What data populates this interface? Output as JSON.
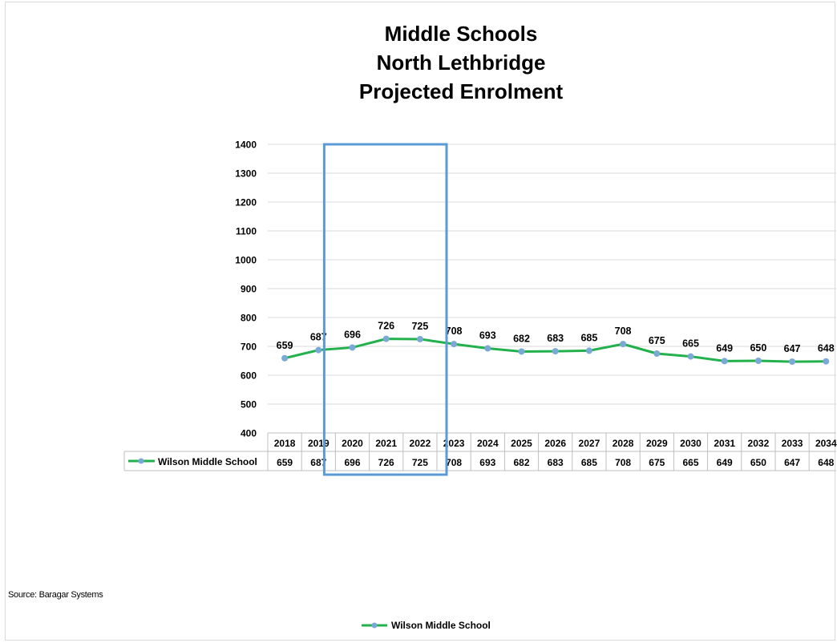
{
  "chart_data": {
    "type": "line",
    "title_lines": [
      "Middle Schools",
      "North Lethbridge",
      "Projected Enrolment"
    ],
    "x": [
      "2018",
      "2019",
      "2020",
      "2021",
      "2022",
      "2023",
      "2024",
      "2025",
      "2026",
      "2027",
      "2028",
      "2029",
      "2030",
      "2031",
      "2032",
      "2033",
      "2034"
    ],
    "series": [
      {
        "name": "Wilson Middle School",
        "values": [
          659,
          687,
          696,
          726,
          725,
          708,
          693,
          682,
          683,
          685,
          708,
          675,
          665,
          649,
          650,
          647,
          648
        ]
      }
    ],
    "ylim": [
      400,
      1400
    ],
    "yticks": [
      400,
      500,
      600,
      700,
      800,
      900,
      1000,
      1100,
      1200,
      1300,
      1400
    ],
    "grid": true,
    "data_table": true,
    "highlight_years": [
      "2020",
      "2021",
      "2022"
    ],
    "legend_position": "bottom",
    "colors": {
      "line": "#22b14c",
      "marker": "#7aa9d6",
      "highlight_box": "#5b9bd5",
      "grid": "#d9d9d9"
    }
  },
  "source_note": "Source: Baragar Systems"
}
